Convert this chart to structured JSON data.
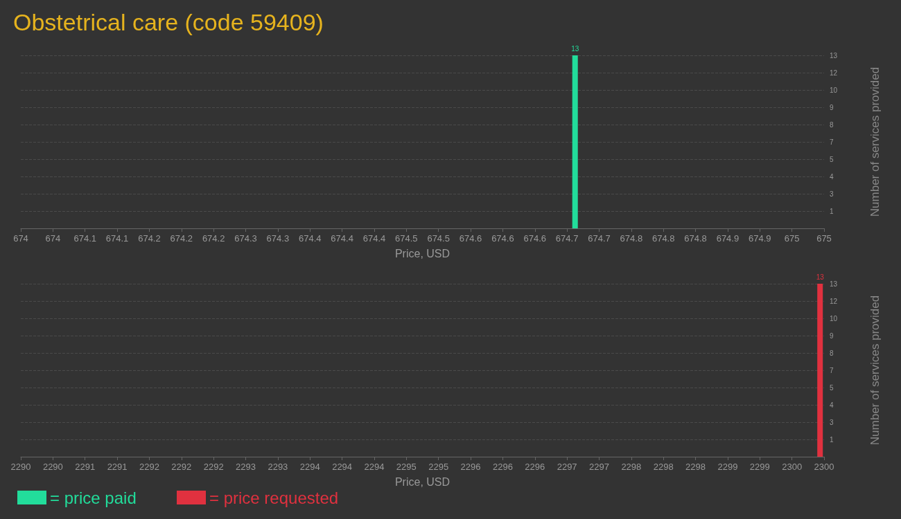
{
  "chart_data": [
    {
      "type": "bar",
      "title": "Obstetrical care (code 59409)",
      "xlabel": "Price, USD",
      "ylabel": "Number of services provided",
      "x": [
        674.69
      ],
      "series": [
        {
          "name": "= price paid",
          "color": "#22dd9b",
          "values": [
            13
          ]
        }
      ],
      "xlim": [
        674,
        675
      ],
      "xticks": [
        674,
        {
          "value": 674.04,
          "label": "674"
        },
        {
          "value": 674.08,
          "label": "674.1"
        },
        {
          "value": 674.12,
          "label": "674.1"
        },
        {
          "value": 674.16,
          "label": "674.2"
        },
        674.2,
        {
          "value": 674.24,
          "label": "674.2"
        },
        {
          "value": 674.28,
          "label": "674.3"
        },
        {
          "value": 674.32,
          "label": "674.3"
        },
        {
          "value": 674.36,
          "label": "674.4"
        },
        674.4,
        {
          "value": 674.44,
          "label": "674.4"
        },
        {
          "value": 674.48,
          "label": "674.5"
        },
        {
          "value": 674.52,
          "label": "674.5"
        },
        {
          "value": 674.56,
          "label": "674.6"
        },
        674.6,
        {
          "value": 674.64,
          "label": "674.6"
        },
        {
          "value": 674.68,
          "label": "674.7"
        },
        {
          "value": 674.72,
          "label": "674.7"
        },
        {
          "value": 674.76,
          "label": "674.8"
        },
        674.8,
        {
          "value": 674.84,
          "label": "674.8"
        },
        {
          "value": 674.88,
          "label": "674.9"
        },
        {
          "value": 674.92,
          "label": "674.9"
        },
        {
          "value": 674.96,
          "label": "675"
        },
        675
      ],
      "ylim": [
        0,
        13
      ],
      "yticks": [
        {
          "value": 1.3,
          "label": "1"
        },
        {
          "value": 2.6,
          "label": "3"
        },
        {
          "value": 3.9,
          "label": "4"
        },
        {
          "value": 5.2,
          "label": "5"
        },
        {
          "value": 6.5,
          "label": "7"
        },
        {
          "value": 7.8,
          "label": "8"
        },
        {
          "value": 9.1,
          "label": "9"
        },
        {
          "value": 10.4,
          "label": "10"
        },
        {
          "value": 11.7,
          "label": "12"
        },
        13
      ],
      "grid": "y",
      "legend": "bottom left",
      "data_labels": true
    },
    {
      "type": "bar",
      "xlabel": "Price, USD",
      "ylabel": "Number of services provided",
      "x": [
        2299.95
      ],
      "series": [
        {
          "name": "= price requested",
          "color": "#e0313f",
          "values": [
            13
          ]
        }
      ],
      "xlim": [
        2290,
        2300
      ],
      "xticks": [
        2290,
        {
          "value": 2290.4,
          "label": "2290"
        },
        {
          "value": 2290.8,
          "label": "2291"
        },
        {
          "value": 2291.2,
          "label": "2291"
        },
        {
          "value": 2291.6,
          "label": "2292"
        },
        2292,
        {
          "value": 2292.4,
          "label": "2292"
        },
        {
          "value": 2292.8,
          "label": "2293"
        },
        {
          "value": 2293.2,
          "label": "2293"
        },
        {
          "value": 2293.6,
          "label": "2294"
        },
        2294,
        {
          "value": 2294.4,
          "label": "2294"
        },
        {
          "value": 2294.8,
          "label": "2295"
        },
        {
          "value": 2295.2,
          "label": "2295"
        },
        {
          "value": 2295.6,
          "label": "2296"
        },
        2296,
        {
          "value": 2296.4,
          "label": "2296"
        },
        {
          "value": 2296.8,
          "label": "2297"
        },
        {
          "value": 2297.2,
          "label": "2297"
        },
        {
          "value": 2297.6,
          "label": "2298"
        },
        2298,
        {
          "value": 2298.4,
          "label": "2298"
        },
        {
          "value": 2298.8,
          "label": "2299"
        },
        {
          "value": 2299.2,
          "label": "2299"
        },
        {
          "value": 2299.6,
          "label": "2300"
        },
        2300
      ],
      "ylim": [
        0,
        13
      ],
      "yticks": [
        {
          "value": 1.3,
          "label": "1"
        },
        {
          "value": 2.6,
          "label": "3"
        },
        {
          "value": 3.9,
          "label": "4"
        },
        {
          "value": 5.2,
          "label": "5"
        },
        {
          "value": 6.5,
          "label": "7"
        },
        {
          "value": 7.8,
          "label": "8"
        },
        {
          "value": 9.1,
          "label": "9"
        },
        {
          "value": 10.4,
          "label": "10"
        },
        {
          "value": 11.7,
          "label": "12"
        },
        13
      ],
      "grid": "y",
      "legend": "bottom left",
      "data_labels": true
    }
  ]
}
